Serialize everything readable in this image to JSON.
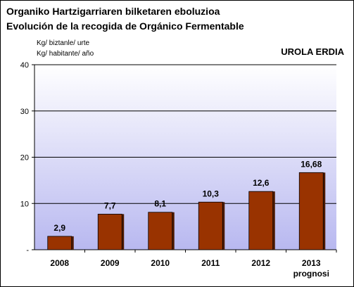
{
  "chart_data": {
    "type": "bar",
    "title": "Organiko Hartzigarriaren bilketaren eboluzioa",
    "subtitle": "Evolución de la recogida de Orgánico Fermentable",
    "ylabel_lines": [
      "Kg/ biztanle/ urte",
      "Kg/ habitante/ año"
    ],
    "region_label": "UROLA ERDIA",
    "categories": [
      "2008",
      "2009",
      "2010",
      "2011",
      "2012",
      "2013"
    ],
    "category_sublabels": [
      "",
      "",
      "",
      "",
      "",
      "prognosi"
    ],
    "values": [
      2.9,
      7.7,
      8.1,
      10.3,
      12.6,
      16.68
    ],
    "value_labels": [
      "2,9",
      "7,7",
      "8,1",
      "10,3",
      "12,6",
      "16,68"
    ],
    "ylim": [
      0,
      40
    ],
    "yticks": [
      0,
      10,
      20,
      30,
      40
    ],
    "ytick_labels": [
      "-",
      "10",
      "20",
      "30",
      "40"
    ],
    "grid": true,
    "bar_color": "#993300",
    "bar_shadow_color": "#4d1a00",
    "plot_gradient_top": "#ffffff",
    "plot_gradient_bottom": "#b8b8f0"
  }
}
